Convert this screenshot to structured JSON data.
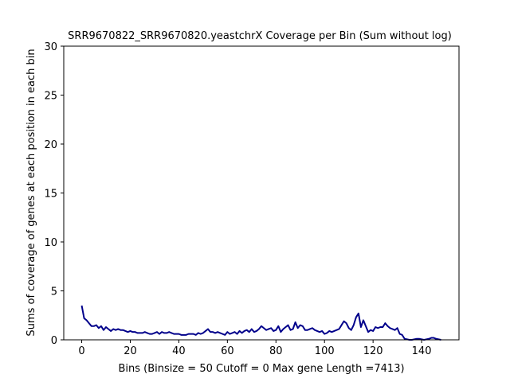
{
  "chart_data": {
    "type": "line",
    "title": "SRR9670822_SRR9670820.yeastchrX Coverage per Bin (Sum without log)",
    "xlabel": "Bins  (Binsize = 50 Cutoff = 0 Max gene Length =7413)",
    "ylabel": "Sums of coverage of genes at each position in each bin",
    "xlim": [
      -7.4,
      155.4
    ],
    "ylim": [
      0,
      30
    ],
    "xticks": [
      0,
      20,
      40,
      60,
      80,
      100,
      120,
      140
    ],
    "yticks": [
      0,
      5,
      10,
      15,
      20,
      25,
      30
    ],
    "grid": false,
    "line_color": "#00008b",
    "series": [
      {
        "x": [
          0,
          1,
          2,
          3,
          4,
          5,
          6,
          7,
          8,
          9,
          10,
          11,
          12,
          13,
          14,
          15,
          16,
          17,
          18,
          19,
          20,
          21,
          22,
          23,
          24,
          25,
          26,
          27,
          28,
          29,
          30,
          31,
          32,
          33,
          34,
          35,
          36,
          37,
          38,
          39,
          40,
          41,
          42,
          43,
          44,
          45,
          46,
          47,
          48,
          49,
          50,
          51,
          52,
          53,
          54,
          55,
          56,
          57,
          58,
          59,
          60,
          61,
          62,
          63,
          64,
          65,
          66,
          67,
          68,
          69,
          70,
          71,
          72,
          73,
          74,
          75,
          76,
          77,
          78,
          79,
          80,
          81,
          82,
          83,
          84,
          85,
          86,
          87,
          88,
          89,
          90,
          91,
          92,
          93,
          94,
          95,
          96,
          97,
          98,
          99,
          100,
          101,
          102,
          103,
          104,
          105,
          106,
          107,
          108,
          109,
          110,
          111,
          112,
          113,
          114,
          115,
          116,
          117,
          118,
          119,
          120,
          121,
          122,
          123,
          124,
          125,
          126,
          127,
          128,
          129,
          130,
          131,
          132,
          133,
          134,
          135,
          136,
          137,
          138,
          139,
          140,
          141,
          142,
          143,
          144,
          145,
          146,
          147,
          148
        ],
        "values": [
          3.5,
          2.2,
          2.0,
          1.7,
          1.4,
          1.4,
          1.5,
          1.2,
          1.4,
          1.0,
          1.3,
          1.1,
          0.9,
          1.1,
          1.0,
          1.1,
          1.0,
          1.0,
          0.9,
          0.8,
          0.9,
          0.8,
          0.8,
          0.7,
          0.7,
          0.7,
          0.8,
          0.7,
          0.6,
          0.6,
          0.7,
          0.8,
          0.6,
          0.8,
          0.7,
          0.7,
          0.8,
          0.7,
          0.6,
          0.6,
          0.6,
          0.5,
          0.5,
          0.5,
          0.6,
          0.6,
          0.6,
          0.5,
          0.7,
          0.6,
          0.7,
          0.9,
          1.1,
          0.8,
          0.8,
          0.7,
          0.8,
          0.7,
          0.6,
          0.5,
          0.8,
          0.6,
          0.7,
          0.8,
          0.6,
          0.9,
          0.7,
          0.9,
          1.0,
          0.8,
          1.1,
          0.8,
          0.9,
          1.1,
          1.4,
          1.2,
          1.0,
          1.1,
          1.2,
          0.9,
          1.0,
          1.4,
          0.8,
          1.1,
          1.3,
          1.5,
          1.0,
          1.1,
          1.8,
          1.2,
          1.5,
          1.4,
          1.0,
          1.0,
          1.1,
          1.2,
          1.0,
          0.9,
          0.8,
          0.9,
          0.6,
          0.7,
          0.9,
          0.8,
          0.9,
          1.0,
          1.1,
          1.5,
          1.9,
          1.7,
          1.2,
          1.0,
          1.5,
          2.3,
          2.7,
          1.3,
          2.0,
          1.4,
          0.8,
          1.0,
          0.9,
          1.3,
          1.2,
          1.3,
          1.3,
          1.7,
          1.4,
          1.2,
          1.1,
          1.0,
          1.2,
          0.6,
          0.5,
          0.1,
          0.05,
          0.0,
          0.0,
          0.05,
          0.1,
          0.1,
          0.05,
          0.0,
          0.05,
          0.1,
          0.2,
          0.2,
          0.1,
          0.05,
          0.0
        ]
      }
    ]
  }
}
